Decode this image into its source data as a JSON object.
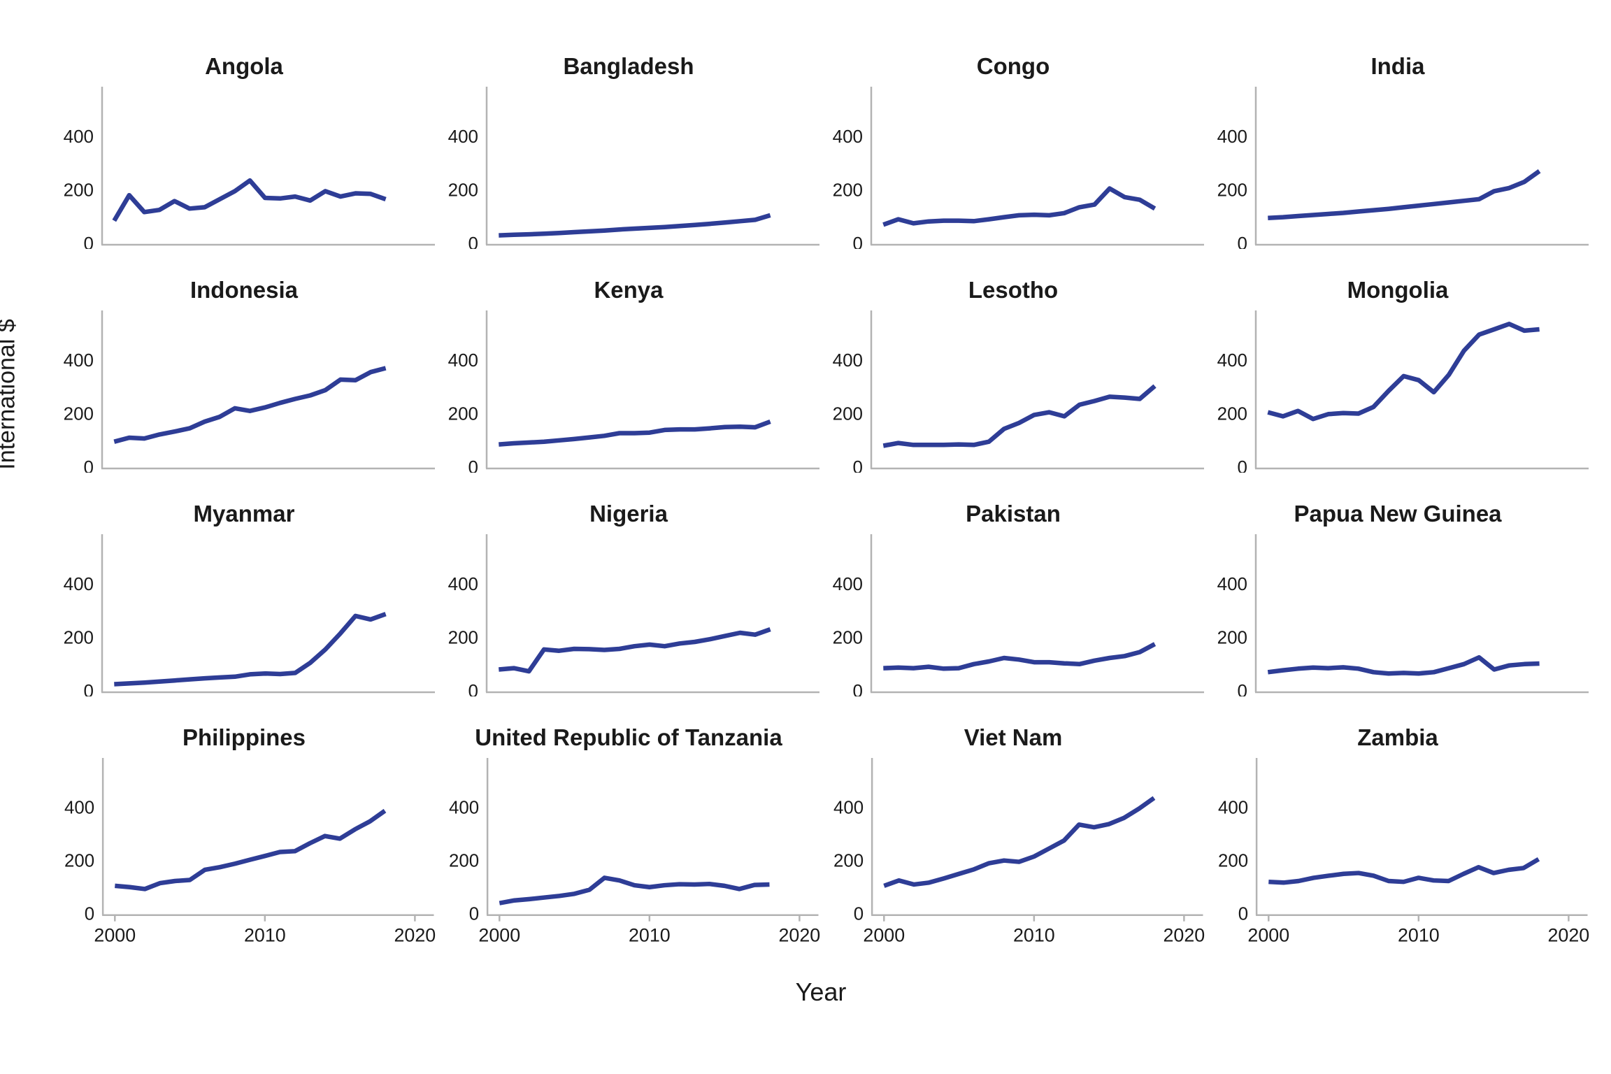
{
  "figure": {
    "ylabel": "International $",
    "xlabel": "Year",
    "line_color": "#2e3d96",
    "axis_color": "#b3b3b3",
    "text_color": "#1a1a1a",
    "x_ticks": [
      2000,
      2010,
      2020
    ],
    "y_ticks": [
      0,
      200,
      400
    ],
    "xlim": [
      1999.2,
      2020.8
    ],
    "ylim": [
      0,
      580
    ],
    "grid": "off",
    "legend": "none"
  },
  "chart_data": [
    {
      "type": "line",
      "title": "Angola",
      "x": [
        2000,
        2001,
        2002,
        2003,
        2004,
        2005,
        2006,
        2007,
        2008,
        2009,
        2010,
        2011,
        2012,
        2013,
        2014,
        2015,
        2016,
        2017,
        2018
      ],
      "values": [
        90,
        185,
        122,
        130,
        163,
        135,
        140,
        170,
        200,
        240,
        175,
        173,
        180,
        165,
        200,
        180,
        192,
        190,
        170
      ]
    },
    {
      "type": "line",
      "title": "Bangladesh",
      "x": [
        2000,
        2001,
        2002,
        2003,
        2004,
        2005,
        2006,
        2007,
        2008,
        2009,
        2010,
        2011,
        2012,
        2013,
        2014,
        2015,
        2016,
        2017,
        2018
      ],
      "values": [
        35,
        37,
        39,
        41,
        44,
        47,
        50,
        53,
        57,
        60,
        63,
        66,
        70,
        74,
        78,
        83,
        88,
        93,
        110
      ]
    },
    {
      "type": "line",
      "title": "Congo",
      "x": [
        2000,
        2001,
        2002,
        2003,
        2004,
        2005,
        2006,
        2007,
        2008,
        2009,
        2010,
        2011,
        2012,
        2013,
        2014,
        2015,
        2016,
        2017,
        2018
      ],
      "values": [
        75,
        95,
        80,
        87,
        90,
        90,
        88,
        95,
        103,
        110,
        112,
        110,
        118,
        140,
        150,
        210,
        178,
        168,
        135
      ]
    },
    {
      "type": "line",
      "title": "India",
      "x": [
        2000,
        2001,
        2002,
        2003,
        2004,
        2005,
        2006,
        2007,
        2008,
        2009,
        2010,
        2011,
        2012,
        2013,
        2014,
        2015,
        2016,
        2017,
        2018
      ],
      "values": [
        100,
        103,
        107,
        111,
        115,
        119,
        124,
        129,
        134,
        140,
        146,
        152,
        158,
        164,
        170,
        200,
        212,
        235,
        275
      ]
    },
    {
      "type": "line",
      "title": "Indonesia",
      "x": [
        2000,
        2001,
        2002,
        2003,
        2004,
        2005,
        2006,
        2007,
        2008,
        2009,
        2010,
        2011,
        2012,
        2013,
        2014,
        2015,
        2016,
        2017,
        2018
      ],
      "values": [
        100,
        115,
        112,
        127,
        138,
        150,
        175,
        193,
        225,
        215,
        228,
        245,
        260,
        273,
        293,
        332,
        330,
        360,
        375
      ]
    },
    {
      "type": "line",
      "title": "Kenya",
      "x": [
        2000,
        2001,
        2002,
        2003,
        2004,
        2005,
        2006,
        2007,
        2008,
        2009,
        2010,
        2011,
        2012,
        2013,
        2014,
        2015,
        2016,
        2017,
        2018
      ],
      "values": [
        90,
        94,
        97,
        100,
        105,
        110,
        116,
        122,
        132,
        132,
        134,
        144,
        146,
        146,
        150,
        155,
        156,
        154,
        175
      ]
    },
    {
      "type": "line",
      "title": "Lesotho",
      "x": [
        2000,
        2001,
        2002,
        2003,
        2004,
        2005,
        2006,
        2007,
        2008,
        2009,
        2010,
        2011,
        2012,
        2013,
        2014,
        2015,
        2016,
        2017,
        2018
      ],
      "values": [
        85,
        95,
        88,
        88,
        88,
        90,
        88,
        100,
        148,
        170,
        200,
        210,
        195,
        238,
        252,
        268,
        265,
        260,
        308
      ]
    },
    {
      "type": "line",
      "title": "Mongolia",
      "x": [
        2000,
        2001,
        2002,
        2003,
        2004,
        2005,
        2006,
        2007,
        2008,
        2009,
        2010,
        2011,
        2012,
        2013,
        2014,
        2015,
        2016,
        2017,
        2018
      ],
      "values": [
        210,
        195,
        215,
        185,
        203,
        207,
        205,
        230,
        290,
        345,
        330,
        285,
        350,
        440,
        500,
        520,
        540,
        515,
        520
      ]
    },
    {
      "type": "line",
      "title": "Myanmar",
      "x": [
        2000,
        2001,
        2002,
        2003,
        2004,
        2005,
        2006,
        2007,
        2008,
        2009,
        2010,
        2011,
        2012,
        2013,
        2014,
        2015,
        2016,
        2017,
        2018
      ],
      "values": [
        30,
        33,
        36,
        40,
        44,
        48,
        52,
        55,
        58,
        67,
        70,
        68,
        72,
        110,
        160,
        220,
        285,
        272,
        292
      ]
    },
    {
      "type": "line",
      "title": "Nigeria",
      "x": [
        2000,
        2001,
        2002,
        2003,
        2004,
        2005,
        2006,
        2007,
        2008,
        2009,
        2010,
        2011,
        2012,
        2013,
        2014,
        2015,
        2016,
        2017,
        2018
      ],
      "values": [
        85,
        90,
        78,
        160,
        155,
        162,
        161,
        158,
        162,
        172,
        178,
        172,
        182,
        188,
        198,
        210,
        222,
        215,
        235
      ]
    },
    {
      "type": "line",
      "title": "Pakistan",
      "x": [
        2000,
        2001,
        2002,
        2003,
        2004,
        2005,
        2006,
        2007,
        2008,
        2009,
        2010,
        2011,
        2012,
        2013,
        2014,
        2015,
        2016,
        2017,
        2018
      ],
      "values": [
        90,
        92,
        90,
        95,
        88,
        90,
        105,
        115,
        128,
        122,
        112,
        112,
        108,
        105,
        118,
        128,
        135,
        150,
        180
      ]
    },
    {
      "type": "line",
      "title": "Papua New Guinea",
      "x": [
        2000,
        2001,
        2002,
        2003,
        2004,
        2005,
        2006,
        2007,
        2008,
        2009,
        2010,
        2011,
        2012,
        2013,
        2014,
        2015,
        2016,
        2017,
        2018
      ],
      "values": [
        75,
        82,
        88,
        92,
        90,
        93,
        88,
        75,
        70,
        72,
        70,
        75,
        90,
        105,
        130,
        85,
        100,
        105,
        107
      ]
    },
    {
      "type": "line",
      "title": "Philippines",
      "x": [
        2000,
        2001,
        2002,
        2003,
        2004,
        2005,
        2006,
        2007,
        2008,
        2009,
        2010,
        2011,
        2012,
        2013,
        2014,
        2015,
        2016,
        2017,
        2018
      ],
      "values": [
        110,
        105,
        98,
        120,
        128,
        132,
        170,
        180,
        193,
        208,
        222,
        237,
        240,
        270,
        297,
        287,
        322,
        352,
        392
      ]
    },
    {
      "type": "line",
      "title": "United Republic of Tanzania",
      "x": [
        2000,
        2001,
        2002,
        2003,
        2004,
        2005,
        2006,
        2007,
        2008,
        2009,
        2010,
        2011,
        2012,
        2013,
        2014,
        2015,
        2016,
        2017,
        2018
      ],
      "values": [
        45,
        55,
        60,
        66,
        72,
        80,
        95,
        140,
        130,
        112,
        105,
        112,
        116,
        115,
        117,
        110,
        98,
        113,
        115
      ]
    },
    {
      "type": "line",
      "title": "Viet Nam",
      "x": [
        2000,
        2001,
        2002,
        2003,
        2004,
        2005,
        2006,
        2007,
        2008,
        2009,
        2010,
        2011,
        2012,
        2013,
        2014,
        2015,
        2016,
        2017,
        2018
      ],
      "values": [
        110,
        130,
        115,
        122,
        138,
        155,
        172,
        195,
        205,
        200,
        220,
        250,
        280,
        340,
        330,
        342,
        365,
        400,
        440
      ]
    },
    {
      "type": "line",
      "title": "Zambia",
      "x": [
        2000,
        2001,
        2002,
        2003,
        2004,
        2005,
        2006,
        2007,
        2008,
        2009,
        2010,
        2011,
        2012,
        2013,
        2014,
        2015,
        2016,
        2017,
        2018
      ],
      "values": [
        125,
        122,
        128,
        140,
        148,
        155,
        158,
        148,
        128,
        125,
        140,
        130,
        128,
        155,
        180,
        158,
        170,
        177,
        210
      ]
    }
  ]
}
